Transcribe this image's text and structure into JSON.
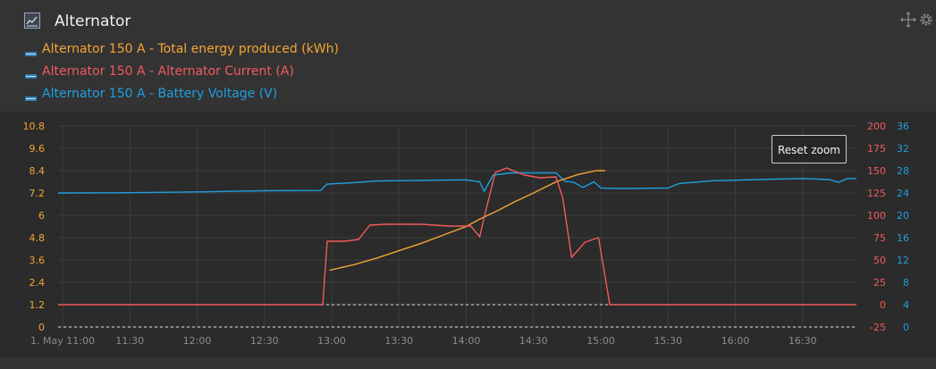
{
  "panel": {
    "title": "Alternator",
    "icon": "line-chart-icon"
  },
  "tools": [
    "move-icon",
    "gear-icon"
  ],
  "legend": [
    {
      "label": "Alternator 150 A - Total energy produced (kWh)",
      "color": "#f5a534"
    },
    {
      "label": "Alternator 150 A - Alternator Current (A)",
      "color": "#f25a5c"
    },
    {
      "label": "Alternator 150 A - Battery Voltage (V)",
      "color": "#1f9fe0"
    }
  ],
  "reset_zoom_label": "Reset zoom",
  "chart_data": {
    "type": "line",
    "x_ticks": [
      "1. May 11:00",
      "11:30",
      "12:00",
      "12:30",
      "13:00",
      "13:30",
      "14:00",
      "14:30",
      "15:00",
      "15:30",
      "16:00",
      "16:30"
    ],
    "xlim": [
      "10:58",
      "16:54"
    ],
    "axes": [
      {
        "side": "left",
        "color": "#f5a534",
        "ylim": [
          0,
          10.8
        ],
        "ticks": [
          "0",
          "1.2",
          "2.4",
          "3.6",
          "4.8",
          "6",
          "7.2",
          "8.4",
          "9.6",
          "10.8"
        ]
      },
      {
        "side": "right",
        "color": "#f25a5c",
        "ylim": [
          -25,
          200
        ],
        "ticks": [
          "-25",
          "0",
          "25",
          "50",
          "75",
          "100",
          "125",
          "150",
          "175",
          "200"
        ]
      },
      {
        "side": "right",
        "color": "#1f9fe0",
        "ylim": [
          0,
          36
        ],
        "ticks": [
          "0",
          "4",
          "8",
          "12",
          "16",
          "20",
          "24",
          "28",
          "32",
          "36"
        ]
      }
    ],
    "grid": true,
    "series": [
      {
        "name": "Alternator 150 A - Total energy produced (kWh)",
        "axis": 0,
        "points": [
          [
            "12:59",
            3.05
          ],
          [
            "13:10",
            3.35
          ],
          [
            "13:20",
            3.7
          ],
          [
            "13:30",
            4.1
          ],
          [
            "13:40",
            4.5
          ],
          [
            "13:50",
            4.95
          ],
          [
            "14:00",
            5.4
          ],
          [
            "14:06",
            5.8
          ],
          [
            "14:14",
            6.25
          ],
          [
            "14:22",
            6.75
          ],
          [
            "14:30",
            7.2
          ],
          [
            "14:40",
            7.8
          ],
          [
            "14:50",
            8.2
          ],
          [
            "14:58",
            8.4
          ],
          [
            "15:02",
            8.4
          ]
        ]
      },
      {
        "name": "Alternator 150 A - Alternator Current (A)",
        "axis": 1,
        "points": [
          [
            "10:58",
            0
          ],
          [
            "12:56",
            0
          ],
          [
            "12:58",
            71
          ],
          [
            "13:06",
            71
          ],
          [
            "13:12",
            73
          ],
          [
            "13:17",
            89
          ],
          [
            "13:24",
            90
          ],
          [
            "13:40",
            90
          ],
          [
            "13:52",
            88
          ],
          [
            "14:02",
            88
          ],
          [
            "14:06",
            76
          ],
          [
            "14:08",
            98
          ],
          [
            "14:13",
            148
          ],
          [
            "14:18",
            153
          ],
          [
            "14:26",
            145
          ],
          [
            "14:33",
            142
          ],
          [
            "14:40",
            143
          ],
          [
            "14:43",
            120
          ],
          [
            "14:47",
            53
          ],
          [
            "14:53",
            70
          ],
          [
            "14:59",
            75
          ],
          [
            "15:04",
            0
          ],
          [
            "16:54",
            0
          ]
        ]
      },
      {
        "name": "Alternator 150 A - Battery Voltage (V)",
        "axis": 2,
        "points": [
          [
            "10:58",
            24.0
          ],
          [
            "11:30",
            24.05
          ],
          [
            "12:00",
            24.2
          ],
          [
            "12:30",
            24.4
          ],
          [
            "12:55",
            24.45
          ],
          [
            "12:58",
            25.6
          ],
          [
            "13:10",
            25.85
          ],
          [
            "13:20",
            26.15
          ],
          [
            "13:40",
            26.25
          ],
          [
            "14:00",
            26.35
          ],
          [
            "14:06",
            26.0
          ],
          [
            "14:08",
            24.3
          ],
          [
            "14:12",
            27.2
          ],
          [
            "14:20",
            27.6
          ],
          [
            "14:40",
            27.6
          ],
          [
            "14:44",
            26.1
          ],
          [
            "14:48",
            25.9
          ],
          [
            "14:52",
            25.0
          ],
          [
            "14:57",
            26.0
          ],
          [
            "15:00",
            24.9
          ],
          [
            "15:10",
            24.8
          ],
          [
            "15:30",
            24.9
          ],
          [
            "15:35",
            25.7
          ],
          [
            "15:50",
            26.2
          ],
          [
            "16:10",
            26.4
          ],
          [
            "16:30",
            26.6
          ],
          [
            "16:42",
            26.4
          ],
          [
            "16:46",
            25.9
          ],
          [
            "16:50",
            26.6
          ],
          [
            "16:54",
            26.6
          ]
        ]
      }
    ]
  }
}
